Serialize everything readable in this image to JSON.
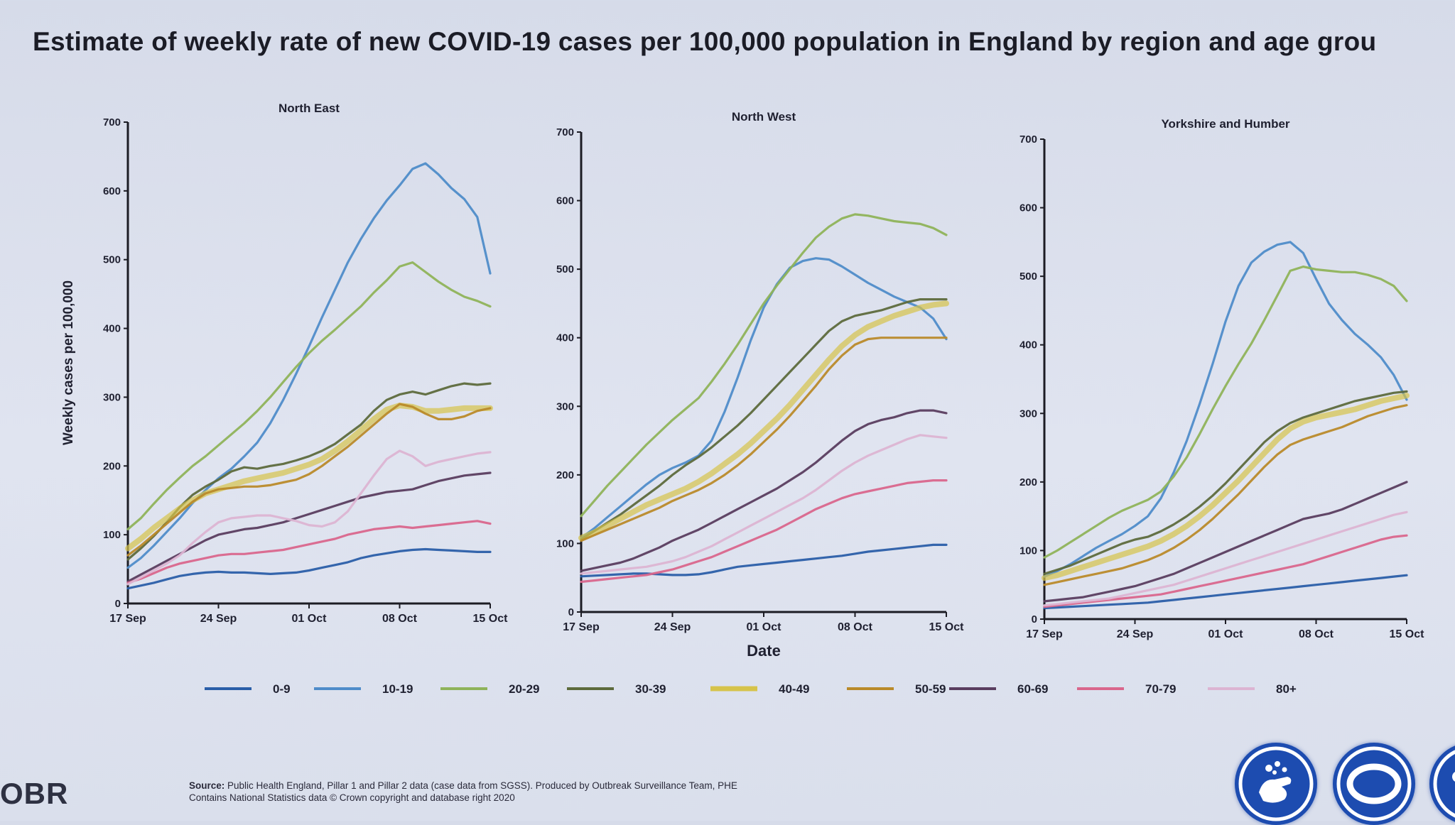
{
  "title": "Estimate of weekly rate of new COVID-19 cases per 100,000 population in England by region and age grou",
  "source_line1_bold": "Source:",
  "source_line1": " Public Health England, Pillar 1 and Pillar 2 data (case data from SGSS). Produced by Outbreak Surveillance Team, PHE",
  "source_line2": "Contains National Statistics data © Crown copyright and database right 2020",
  "logo_text": "OBR",
  "colors": {
    "0-9": "#2a5ea8",
    "10-19": "#4f8cc9",
    "20-29": "#8fb35a",
    "30-39": "#5d6a3c",
    "40-49": "#d6c34a",
    "50-59": "#b98a2a",
    "60-69": "#5a3d5f",
    "70-79": "#d9668c",
    "80+": "#dcb4d2"
  },
  "icons": [
    "handwashing-icon",
    "face-covering-icon",
    "space-icon"
  ],
  "chart_data": [
    {
      "type": "line",
      "title": "North East",
      "ylabel": "Weekly cases per 100,000",
      "xlabel": "",
      "ylim": [
        0,
        700
      ],
      "yticks": [
        "0",
        "100",
        "200",
        "300",
        "400",
        "500",
        "600",
        "700"
      ],
      "xticks": [
        "17 Sep",
        "24 Sep",
        "01 Oct",
        "08 Oct",
        "15 Oct"
      ],
      "x": [
        "17 Sep",
        "18 Sep",
        "19 Sep",
        "20 Sep",
        "21 Sep",
        "22 Sep",
        "23 Sep",
        "24 Sep",
        "25 Sep",
        "26 Sep",
        "27 Sep",
        "28 Sep",
        "29 Sep",
        "30 Sep",
        "01 Oct",
        "02 Oct",
        "03 Oct",
        "04 Oct",
        "05 Oct",
        "06 Oct",
        "07 Oct",
        "08 Oct",
        "09 Oct",
        "10 Oct",
        "11 Oct",
        "12 Oct",
        "13 Oct",
        "14 Oct",
        "15 Oct"
      ],
      "series": [
        {
          "name": "0-9",
          "values": [
            22,
            26,
            30,
            35,
            40,
            43,
            45,
            46,
            45,
            45,
            44,
            43,
            44,
            45,
            48,
            52,
            56,
            60,
            66,
            70,
            73,
            76,
            78,
            79,
            78,
            77,
            76,
            75,
            75
          ]
        },
        {
          "name": "10-19",
          "values": [
            52,
            66,
            84,
            104,
            124,
            146,
            165,
            182,
            196,
            214,
            234,
            262,
            296,
            334,
            374,
            416,
            456,
            496,
            530,
            560,
            586,
            608,
            632,
            640,
            624,
            604,
            588,
            562,
            480
          ]
        },
        {
          "name": "20-29",
          "values": [
            108,
            124,
            145,
            165,
            183,
            200,
            214,
            230,
            246,
            262,
            280,
            300,
            322,
            344,
            364,
            382,
            398,
            415,
            432,
            452,
            470,
            490,
            496,
            482,
            468,
            456,
            446,
            440,
            432
          ]
        },
        {
          "name": "30-39",
          "values": [
            64,
            80,
            98,
            118,
            140,
            158,
            170,
            180,
            192,
            198,
            196,
            200,
            203,
            208,
            214,
            222,
            232,
            246,
            260,
            280,
            296,
            304,
            308,
            304,
            310,
            316,
            320,
            318,
            320
          ]
        },
        {
          "name": "40-49",
          "values": [
            80,
            94,
            110,
            124,
            138,
            150,
            160,
            166,
            172,
            178,
            182,
            186,
            190,
            196,
            202,
            210,
            222,
            236,
            252,
            268,
            282,
            288,
            286,
            280,
            280,
            282,
            284,
            284,
            284
          ]
        },
        {
          "name": "50-59",
          "values": [
            70,
            84,
            100,
            116,
            132,
            148,
            160,
            166,
            168,
            170,
            170,
            172,
            176,
            180,
            188,
            200,
            214,
            228,
            244,
            260,
            276,
            290,
            286,
            276,
            268,
            268,
            272,
            280,
            284
          ]
        },
        {
          "name": "60-69",
          "values": [
            32,
            42,
            52,
            62,
            72,
            82,
            92,
            100,
            104,
            108,
            110,
            114,
            118,
            124,
            130,
            136,
            142,
            148,
            154,
            158,
            162,
            164,
            166,
            172,
            178,
            182,
            186,
            188,
            190
          ]
        },
        {
          "name": "70-79",
          "values": [
            30,
            36,
            44,
            52,
            58,
            62,
            66,
            70,
            72,
            72,
            74,
            76,
            78,
            82,
            86,
            90,
            94,
            100,
            104,
            108,
            110,
            112,
            110,
            112,
            114,
            116,
            118,
            120,
            116
          ]
        },
        {
          "name": "80+",
          "values": [
            28,
            38,
            48,
            58,
            70,
            88,
            104,
            118,
            124,
            126,
            128,
            128,
            124,
            120,
            114,
            112,
            118,
            134,
            160,
            186,
            210,
            222,
            214,
            200,
            206,
            210,
            214,
            218,
            220
          ]
        }
      ]
    },
    {
      "type": "line",
      "title": "North West",
      "ylabel": "",
      "xlabel": "Date",
      "ylim": [
        0,
        700
      ],
      "yticks": [
        "0",
        "100",
        "200",
        "300",
        "400",
        "500",
        "600",
        "700"
      ],
      "xticks": [
        "17 Sep",
        "24 Sep",
        "01 Oct",
        "08 Oct",
        "15 Oct"
      ],
      "x": [
        "17 Sep",
        "18 Sep",
        "19 Sep",
        "20 Sep",
        "21 Sep",
        "22 Sep",
        "23 Sep",
        "24 Sep",
        "25 Sep",
        "26 Sep",
        "27 Sep",
        "28 Sep",
        "29 Sep",
        "30 Sep",
        "01 Oct",
        "02 Oct",
        "03 Oct",
        "04 Oct",
        "05 Oct",
        "06 Oct",
        "07 Oct",
        "08 Oct",
        "09 Oct",
        "10 Oct",
        "11 Oct",
        "12 Oct",
        "13 Oct",
        "14 Oct",
        "15 Oct"
      ],
      "series": [
        {
          "name": "0-9",
          "values": [
            52,
            53,
            54,
            55,
            56,
            56,
            55,
            54,
            54,
            55,
            58,
            62,
            66,
            68,
            70,
            72,
            74,
            76,
            78,
            80,
            82,
            85,
            88,
            90,
            92,
            94,
            96,
            98,
            98
          ]
        },
        {
          "name": "10-19",
          "values": [
            108,
            122,
            138,
            154,
            170,
            186,
            200,
            210,
            218,
            228,
            250,
            292,
            342,
            396,
            444,
            478,
            502,
            512,
            516,
            514,
            504,
            492,
            480,
            470,
            460,
            452,
            444,
            428,
            398
          ]
        },
        {
          "name": "20-29",
          "values": [
            140,
            162,
            184,
            204,
            224,
            244,
            262,
            280,
            296,
            312,
            336,
            362,
            390,
            420,
            450,
            476,
            500,
            524,
            546,
            562,
            574,
            580,
            578,
            574,
            570,
            568,
            566,
            560,
            550
          ]
        },
        {
          "name": "30-39",
          "values": [
            106,
            118,
            130,
            142,
            156,
            170,
            184,
            200,
            214,
            226,
            240,
            256,
            272,
            290,
            310,
            330,
            350,
            370,
            390,
            410,
            424,
            432,
            436,
            440,
            446,
            452,
            456,
            456,
            456
          ]
        },
        {
          "name": "40-49",
          "values": [
            108,
            116,
            126,
            136,
            146,
            156,
            164,
            172,
            180,
            190,
            202,
            216,
            230,
            246,
            264,
            282,
            302,
            324,
            346,
            368,
            388,
            404,
            416,
            424,
            432,
            438,
            444,
            448,
            450
          ]
        },
        {
          "name": "50-59",
          "values": [
            104,
            112,
            120,
            128,
            136,
            144,
            152,
            162,
            170,
            178,
            188,
            200,
            214,
            230,
            248,
            266,
            286,
            308,
            330,
            354,
            374,
            390,
            398,
            400,
            400,
            400,
            400,
            400,
            400
          ]
        },
        {
          "name": "60-69",
          "values": [
            60,
            64,
            68,
            72,
            78,
            86,
            94,
            104,
            112,
            120,
            130,
            140,
            150,
            160,
            170,
            180,
            192,
            204,
            218,
            234,
            250,
            264,
            274,
            280,
            284,
            290,
            294,
            294,
            290
          ]
        },
        {
          "name": "70-79",
          "values": [
            44,
            46,
            48,
            50,
            52,
            54,
            58,
            62,
            68,
            74,
            80,
            88,
            96,
            104,
            112,
            120,
            130,
            140,
            150,
            158,
            166,
            172,
            176,
            180,
            184,
            188,
            190,
            192,
            192
          ]
        },
        {
          "name": "80+",
          "values": [
            56,
            58,
            60,
            62,
            64,
            66,
            70,
            74,
            80,
            88,
            96,
            106,
            116,
            126,
            136,
            146,
            156,
            166,
            178,
            192,
            206,
            218,
            228,
            236,
            244,
            252,
            258,
            256,
            254
          ]
        }
      ]
    },
    {
      "type": "line",
      "title": "Yorkshire and Humber",
      "ylabel": "",
      "xlabel": "",
      "ylim": [
        0,
        700
      ],
      "yticks": [
        "0",
        "100",
        "200",
        "300",
        "400",
        "500",
        "600",
        "700"
      ],
      "xticks": [
        "17 Sep",
        "24 Sep",
        "01 Oct",
        "08 Oct",
        "15 Oct"
      ],
      "x": [
        "17 Sep",
        "18 Sep",
        "19 Sep",
        "20 Sep",
        "21 Sep",
        "22 Sep",
        "23 Sep",
        "24 Sep",
        "25 Sep",
        "26 Sep",
        "27 Sep",
        "28 Sep",
        "29 Sep",
        "30 Sep",
        "01 Oct",
        "02 Oct",
        "03 Oct",
        "04 Oct",
        "05 Oct",
        "06 Oct",
        "07 Oct",
        "08 Oct",
        "09 Oct",
        "10 Oct",
        "11 Oct",
        "12 Oct",
        "13 Oct",
        "14 Oct",
        "15 Oct"
      ],
      "series": [
        {
          "name": "0-9",
          "values": [
            16,
            17,
            18,
            19,
            20,
            21,
            22,
            23,
            24,
            26,
            28,
            30,
            32,
            34,
            36,
            38,
            40,
            42,
            44,
            46,
            48,
            50,
            52,
            54,
            56,
            58,
            60,
            62,
            64
          ]
        },
        {
          "name": "10-19",
          "values": [
            62,
            70,
            80,
            92,
            104,
            114,
            124,
            136,
            150,
            176,
            214,
            260,
            314,
            372,
            434,
            486,
            520,
            536,
            546,
            550,
            534,
            496,
            460,
            436,
            416,
            400,
            382,
            356,
            320
          ]
        },
        {
          "name": "20-29",
          "values": [
            90,
            100,
            112,
            124,
            136,
            148,
            158,
            166,
            174,
            186,
            208,
            236,
            270,
            306,
            340,
            372,
            402,
            436,
            472,
            508,
            514,
            510,
            508,
            506,
            506,
            502,
            496,
            486,
            464
          ]
        },
        {
          "name": "30-39",
          "values": [
            66,
            72,
            78,
            86,
            94,
            102,
            110,
            116,
            120,
            128,
            138,
            150,
            164,
            180,
            198,
            218,
            238,
            258,
            274,
            286,
            294,
            300,
            306,
            312,
            318,
            322,
            326,
            330,
            332
          ]
        },
        {
          "name": "40-49",
          "values": [
            60,
            64,
            70,
            76,
            82,
            88,
            94,
            100,
            106,
            114,
            124,
            136,
            150,
            166,
            184,
            202,
            222,
            242,
            262,
            278,
            288,
            294,
            298,
            302,
            306,
            312,
            318,
            322,
            326
          ]
        },
        {
          "name": "50-59",
          "values": [
            50,
            54,
            58,
            62,
            66,
            70,
            74,
            80,
            86,
            94,
            104,
            116,
            130,
            146,
            164,
            182,
            202,
            222,
            240,
            254,
            262,
            268,
            274,
            280,
            288,
            296,
            302,
            308,
            312
          ]
        },
        {
          "name": "60-69",
          "values": [
            26,
            28,
            30,
            32,
            36,
            40,
            44,
            48,
            54,
            60,
            66,
            74,
            82,
            90,
            98,
            106,
            114,
            122,
            130,
            138,
            146,
            150,
            154,
            160,
            168,
            176,
            184,
            192,
            200
          ]
        },
        {
          "name": "70-79",
          "values": [
            18,
            20,
            22,
            24,
            26,
            28,
            30,
            32,
            34,
            36,
            40,
            44,
            48,
            52,
            56,
            60,
            64,
            68,
            72,
            76,
            80,
            86,
            92,
            98,
            104,
            110,
            116,
            120,
            122
          ]
        },
        {
          "name": "80+",
          "values": [
            20,
            22,
            24,
            26,
            28,
            30,
            34,
            38,
            42,
            46,
            50,
            56,
            62,
            68,
            74,
            80,
            86,
            92,
            98,
            104,
            110,
            116,
            122,
            128,
            134,
            140,
            146,
            152,
            156
          ]
        }
      ]
    }
  ]
}
